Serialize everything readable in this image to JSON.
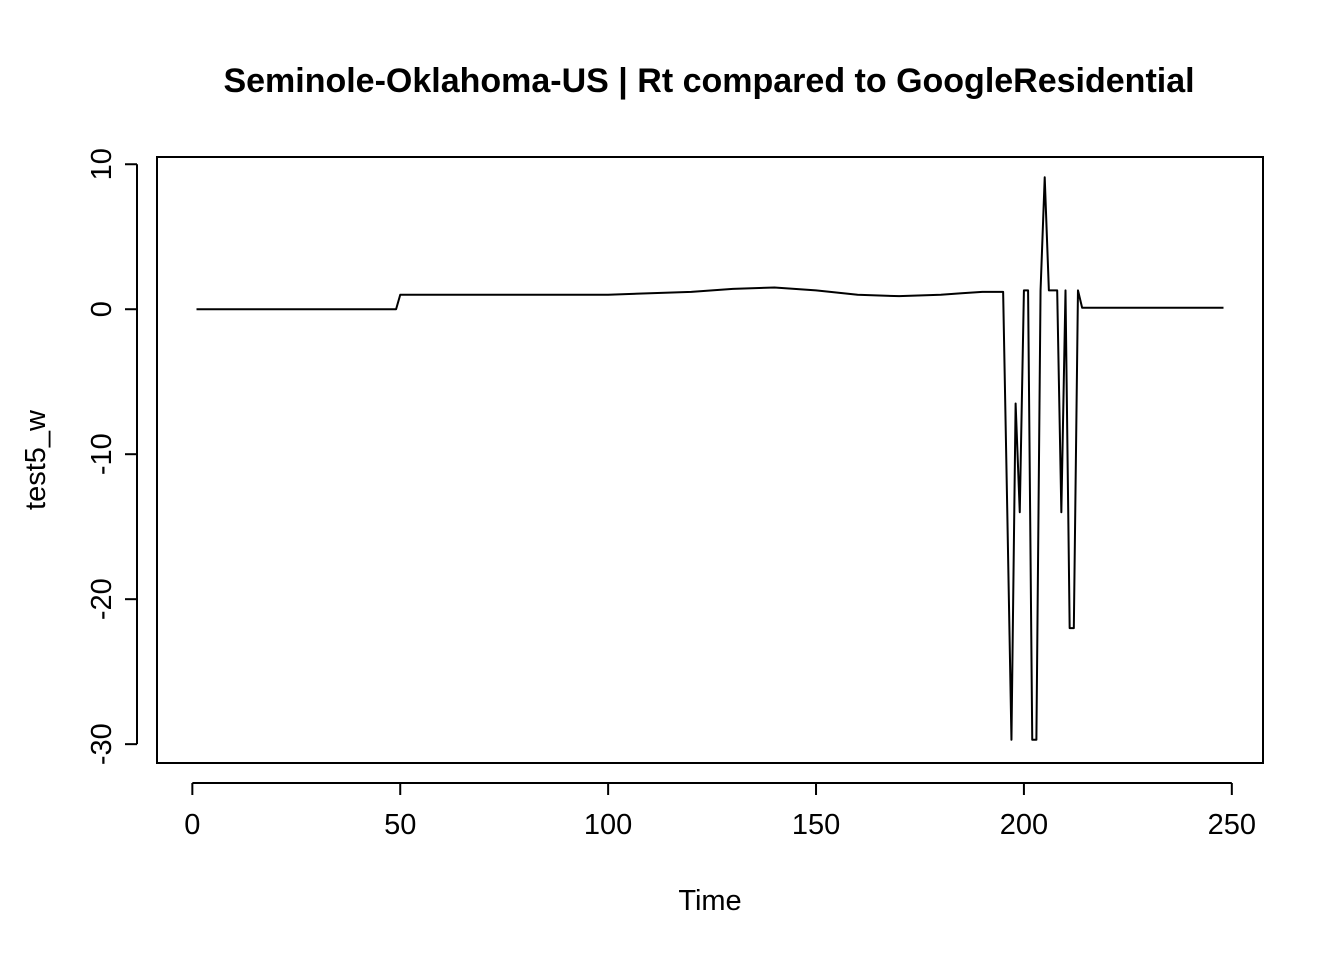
{
  "chart_data": {
    "type": "line",
    "title": "Seminole-Oklahoma-US | Rt compared to GoogleResidential",
    "xlabel": "Time",
    "ylabel": "test5_w",
    "xlim": [
      -8.5,
      257.5
    ],
    "ylim": [
      -31.3,
      10.5
    ],
    "x_ticks": [
      0,
      50,
      100,
      150,
      200,
      250
    ],
    "y_ticks": [
      -30,
      -20,
      -10,
      0,
      10
    ],
    "grid": false,
    "legend": "none",
    "line_color": "#000000",
    "series": [
      {
        "x": [
          1,
          48,
          49,
          50,
          55,
          80,
          100,
          120,
          130,
          140,
          150,
          160,
          170,
          180,
          185,
          190,
          195,
          196,
          197,
          198,
          199,
          200,
          201,
          202,
          203,
          204,
          205,
          206,
          207,
          208,
          209,
          210,
          211,
          212,
          213,
          214,
          215,
          220,
          248
        ],
        "y": [
          0,
          0,
          0,
          1.0,
          1.0,
          1.0,
          1.0,
          1.2,
          1.4,
          1.5,
          1.3,
          1.0,
          0.9,
          1.0,
          1.1,
          1.2,
          1.2,
          -14,
          -29.7,
          -6.5,
          -14,
          1.3,
          1.3,
          -29.7,
          -29.7,
          1.3,
          9.1,
          1.3,
          1.3,
          1.3,
          -14,
          1.3,
          -22,
          -22,
          1.3,
          0.1,
          0.1,
          0.1,
          0.1
        ]
      }
    ]
  }
}
